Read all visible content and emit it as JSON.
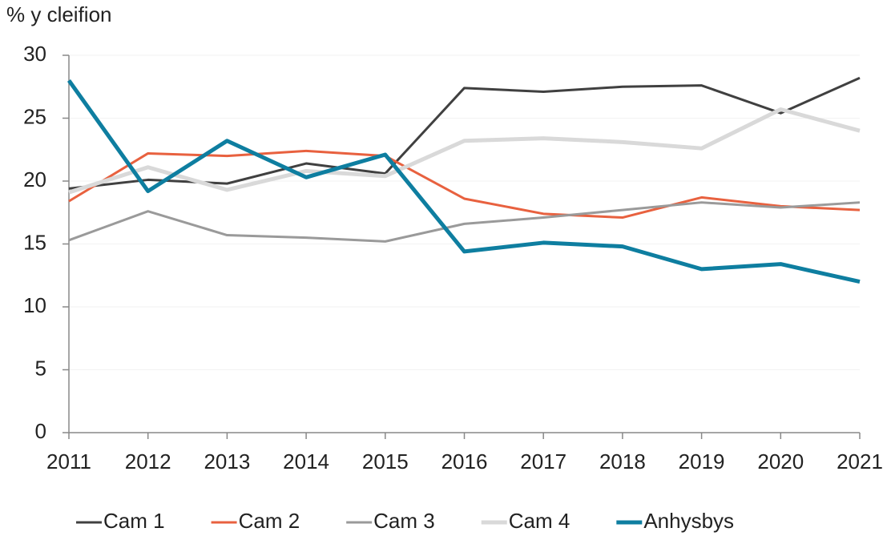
{
  "chart_data": {
    "type": "line",
    "title": "% y cleifion",
    "x": [
      2011,
      2012,
      2013,
      2014,
      2015,
      2016,
      2017,
      2018,
      2019,
      2020,
      2021
    ],
    "xlim": [
      2011,
      2021
    ],
    "xticks": [
      2011,
      2012,
      2013,
      2014,
      2015,
      2016,
      2017,
      2018,
      2019,
      2020,
      2021
    ],
    "ylim": [
      0,
      30
    ],
    "yticks": [
      0,
      5,
      10,
      15,
      20,
      25,
      30
    ],
    "grid": true,
    "legend": "bottom",
    "series": [
      {
        "name": "Cam 1",
        "color": "#404040",
        "values": [
          19.4,
          20.1,
          19.8,
          21.4,
          20.6,
          27.4,
          27.1,
          27.5,
          27.6,
          25.4,
          28.2
        ]
      },
      {
        "name": "Cam 2",
        "color": "#e8613f",
        "values": [
          18.4,
          22.2,
          22.0,
          22.4,
          22.0,
          18.6,
          17.4,
          17.1,
          18.7,
          18.0,
          17.7
        ]
      },
      {
        "name": "Cam 3",
        "color": "#9a9a9a",
        "values": [
          15.3,
          17.6,
          15.7,
          15.5,
          15.2,
          16.6,
          17.1,
          17.7,
          18.3,
          17.9,
          18.3
        ]
      },
      {
        "name": "Cam 4",
        "color": "#d9d9d9",
        "values": [
          19.1,
          21.1,
          19.3,
          20.8,
          20.4,
          23.2,
          23.4,
          23.1,
          22.6,
          25.7,
          24.0
        ]
      },
      {
        "name": "Anhysbys",
        "color": "#0e7ea0",
        "values": [
          28.0,
          19.2,
          23.2,
          20.3,
          22.1,
          14.4,
          15.1,
          14.8,
          13.0,
          13.4,
          12.0
        ]
      }
    ]
  }
}
